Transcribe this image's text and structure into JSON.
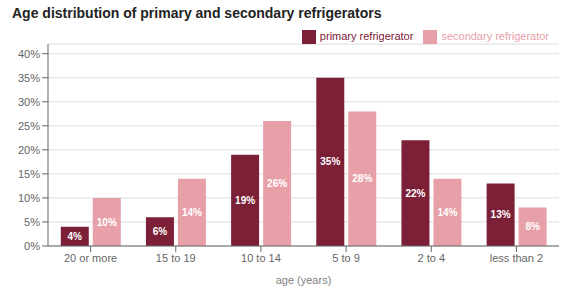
{
  "chart_data": {
    "type": "bar",
    "title": "Age distribution of primary and secondary refrigerators",
    "xlabel": "age (years)",
    "categories": [
      "20 or more",
      "15 to 19",
      "10 to 14",
      "5 to 9",
      "2 to 4",
      "less than 2"
    ],
    "series": [
      {
        "name": "primary refrigerator",
        "color": "#7B2037",
        "values": [
          4,
          6,
          19,
          35,
          22,
          13
        ],
        "value_labels": [
          "4%",
          "6%",
          "19%",
          "35%",
          "22%",
          "13%"
        ]
      },
      {
        "name": "secondary refrigerator",
        "color": "#E8A0A8",
        "values": [
          10,
          14,
          26,
          28,
          14,
          8
        ],
        "value_labels": [
          "10%",
          "14%",
          "26%",
          "28%",
          "14%",
          "8%"
        ]
      }
    ],
    "ylim": [
      0,
      42
    ],
    "yticks": [
      {
        "value": 0,
        "label": "0%"
      },
      {
        "value": 5,
        "label": "5%"
      },
      {
        "value": 10,
        "label": "10%"
      },
      {
        "value": 15,
        "label": "15%"
      },
      {
        "value": 20,
        "label": "20%"
      },
      {
        "value": 25,
        "label": "25%"
      },
      {
        "value": 30,
        "label": "30%"
      },
      {
        "value": 35,
        "label": "35%"
      },
      {
        "value": 40,
        "label": "40%"
      }
    ],
    "grid": true,
    "legend": "upper right",
    "data_labels": true
  }
}
